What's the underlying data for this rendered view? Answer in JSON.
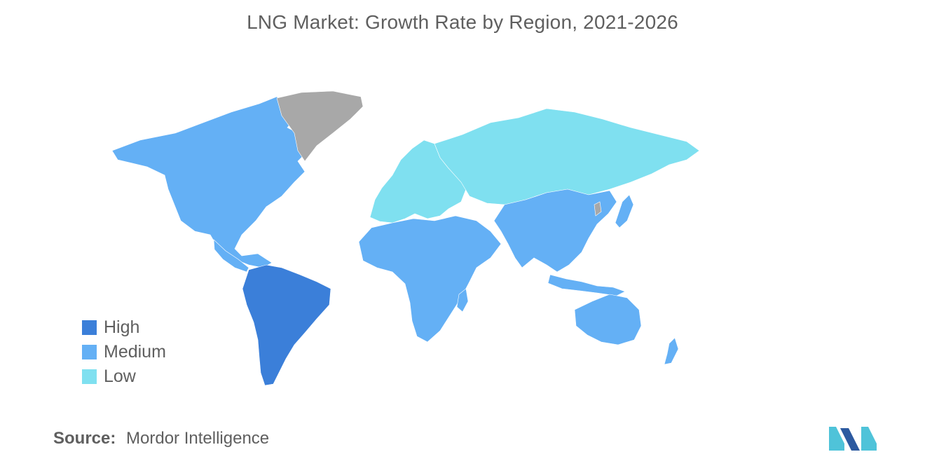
{
  "title": "LNG Market: Growth Rate by Region, 2021-2026",
  "legend": [
    {
      "label": "High",
      "color": "#3b7fd9"
    },
    {
      "label": "Medium",
      "color": "#64b0f5"
    },
    {
      "label": "Low",
      "color": "#7fe0f0"
    }
  ],
  "no_data_color": "#a8a8a8",
  "regions": [
    {
      "name": "North America",
      "level": "Medium"
    },
    {
      "name": "South America",
      "level": "High"
    },
    {
      "name": "Europe",
      "level": "Low"
    },
    {
      "name": "Russia and Central Asia",
      "level": "Low"
    },
    {
      "name": "Middle East and Africa",
      "level": "Medium"
    },
    {
      "name": "Asia-Pacific",
      "level": "Medium"
    },
    {
      "name": "Oceania",
      "level": "Medium"
    },
    {
      "name": "Greenland",
      "level": "No data"
    }
  ],
  "source": {
    "label": "Source:",
    "text": "Mordor Intelligence"
  },
  "logo": {
    "colors": [
      "#2c5aa0",
      "#4fc3d9"
    ]
  }
}
